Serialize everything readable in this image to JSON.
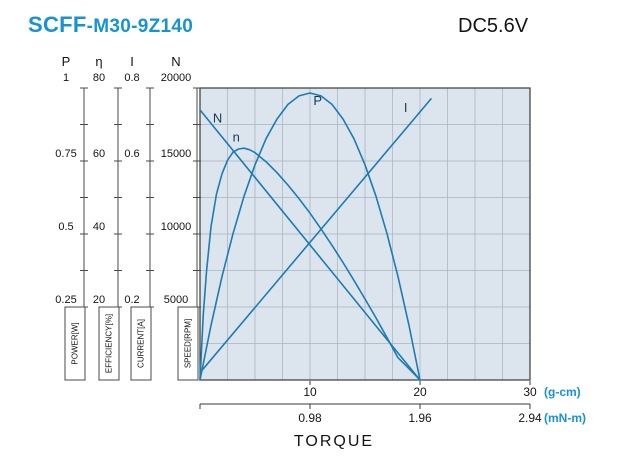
{
  "header": {
    "model_prefix": "SCFF",
    "model_suffix": "-M30-9Z140",
    "voltage": "DC5.6V"
  },
  "chart_data": {
    "type": "line",
    "xlabel": "TORQUE",
    "x_axis": {
      "unit_primary": "(g-cm)",
      "unit_secondary": "(mN-m)",
      "ticks_primary": [
        "10",
        "20",
        "30"
      ],
      "ticks_secondary": [
        "0.98",
        "1.96",
        "2.94"
      ],
      "range": [
        0,
        30
      ]
    },
    "y_axes": [
      {
        "symbol": "P",
        "unit_label": "POWER[W]",
        "top": "1",
        "ticks": [
          "0.75",
          "0.5",
          "0.25"
        ],
        "range": [
          0,
          1
        ]
      },
      {
        "symbol": "η",
        "unit_label": "EFFICIENCY[%]",
        "top": "80",
        "ticks": [
          "60",
          "40",
          "20"
        ],
        "range": [
          0,
          80
        ]
      },
      {
        "symbol": "I",
        "unit_label": "CURRENT[A]",
        "top": "0.8",
        "ticks": [
          "0.6",
          "",
          "0.2"
        ],
        "range": [
          0,
          0.8
        ]
      },
      {
        "symbol": "N",
        "unit_label": "SPEED[RPM]",
        "top": "20000",
        "ticks": [
          "15000",
          "10000",
          "5000"
        ],
        "range": [
          0,
          20000
        ]
      }
    ],
    "series": [
      {
        "name": "N",
        "ymax": 20000,
        "label_at": [
          1.6,
          17900
        ],
        "points": [
          [
            0,
            18500
          ],
          [
            20,
            0
          ]
        ]
      },
      {
        "name": "n",
        "ymax": 80,
        "label_at": [
          3.3,
          66.5
        ],
        "points": [
          [
            0,
            0
          ],
          [
            0.3,
            18
          ],
          [
            0.6,
            30
          ],
          [
            1,
            42
          ],
          [
            1.5,
            51
          ],
          [
            2,
            56.5
          ],
          [
            2.5,
            60.2
          ],
          [
            3,
            62.4
          ],
          [
            3.5,
            63.3
          ],
          [
            4,
            63.5
          ],
          [
            4.5,
            63.1
          ],
          [
            5,
            62.3
          ],
          [
            6,
            59.8
          ],
          [
            7,
            56.8
          ],
          [
            8,
            53.4
          ],
          [
            9,
            49.7
          ],
          [
            10,
            45.7
          ],
          [
            11,
            41.4
          ],
          [
            12,
            36.9
          ],
          [
            13,
            32.2
          ],
          [
            14,
            27.3
          ],
          [
            15,
            22.2
          ],
          [
            16,
            17
          ],
          [
            17,
            11.6
          ],
          [
            18,
            6.1
          ],
          [
            19,
            3.1
          ],
          [
            20,
            0
          ]
        ]
      },
      {
        "name": "P",
        "ymax": 1,
        "label_at": [
          10.7,
          0.955
        ],
        "points": [
          [
            0,
            0
          ],
          [
            1,
            0.187
          ],
          [
            2,
            0.354
          ],
          [
            3,
            0.501
          ],
          [
            4,
            0.629
          ],
          [
            5,
            0.737
          ],
          [
            6,
            0.826
          ],
          [
            7,
            0.894
          ],
          [
            8,
            0.944
          ],
          [
            9,
            0.973
          ],
          [
            10,
            0.983
          ],
          [
            11,
            0.973
          ],
          [
            12,
            0.944
          ],
          [
            13,
            0.894
          ],
          [
            14,
            0.826
          ],
          [
            15,
            0.737
          ],
          [
            16,
            0.629
          ],
          [
            17,
            0.501
          ],
          [
            18,
            0.354
          ],
          [
            19,
            0.187
          ],
          [
            20,
            0
          ]
        ]
      },
      {
        "name": "I",
        "ymax": 0.8,
        "label_at": [
          18.7,
          0.745
        ],
        "points": [
          [
            0,
            0.02
          ],
          [
            21,
            0.77
          ]
        ]
      }
    ],
    "colors": {
      "curve": "#1e7bb0",
      "plot_bg": "#dce5ed",
      "accent": "#1793d1"
    }
  }
}
